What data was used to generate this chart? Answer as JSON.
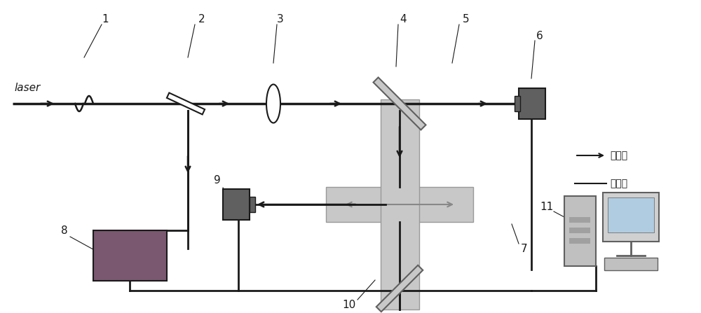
{
  "bg_color": "#ffffff",
  "line_color": "#1a1a1a",
  "light_gray": "#c8c8c8",
  "dark_gray": "#606060",
  "purple_color": "#7a5870",
  "beam_lw": 2.0,
  "label_fontsize": 11,
  "legend_text": [
    "激光束",
    "数据流"
  ]
}
